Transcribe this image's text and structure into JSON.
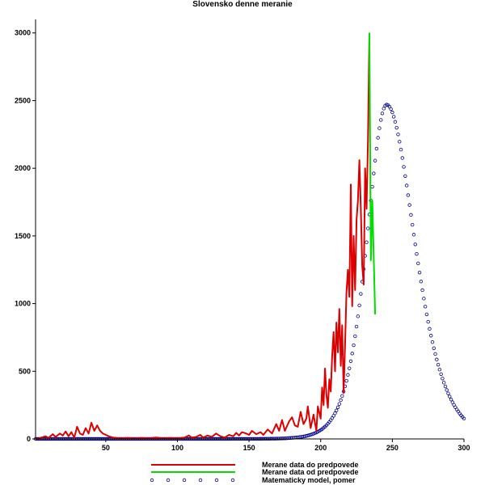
{
  "chart_data": {
    "type": "line",
    "title": "Slovensko denne meranie",
    "xlabel": "",
    "ylabel": "",
    "xlim": [
      1,
      300
    ],
    "ylim": [
      0,
      3100
    ],
    "x_ticks": [
      50,
      100,
      150,
      200,
      250,
      300
    ],
    "y_ticks": [
      0,
      500,
      1000,
      1500,
      2000,
      2500,
      3000
    ],
    "grid": false,
    "legend_position": "bottom-center",
    "series": [
      {
        "name": "Merane data do predpovede",
        "color": "#dd0000",
        "style": "line",
        "points": [
          [
            1,
            5
          ],
          [
            3,
            0
          ],
          [
            5,
            10
          ],
          [
            8,
            20
          ],
          [
            10,
            8
          ],
          [
            13,
            35
          ],
          [
            15,
            15
          ],
          [
            18,
            40
          ],
          [
            20,
            25
          ],
          [
            22,
            55
          ],
          [
            24,
            20
          ],
          [
            26,
            50
          ],
          [
            28,
            10
          ],
          [
            30,
            90
          ],
          [
            32,
            40
          ],
          [
            34,
            30
          ],
          [
            36,
            80
          ],
          [
            38,
            40
          ],
          [
            40,
            120
          ],
          [
            42,
            60
          ],
          [
            44,
            100
          ],
          [
            46,
            60
          ],
          [
            48,
            40
          ],
          [
            50,
            30
          ],
          [
            52,
            20
          ],
          [
            55,
            10
          ],
          [
            60,
            5
          ],
          [
            65,
            8
          ],
          [
            70,
            5
          ],
          [
            75,
            8
          ],
          [
            80,
            5
          ],
          [
            85,
            10
          ],
          [
            90,
            5
          ],
          [
            95,
            8
          ],
          [
            100,
            5
          ],
          [
            105,
            10
          ],
          [
            108,
            25
          ],
          [
            110,
            10
          ],
          [
            113,
            15
          ],
          [
            116,
            30
          ],
          [
            118,
            10
          ],
          [
            121,
            25
          ],
          [
            124,
            15
          ],
          [
            127,
            40
          ],
          [
            130,
            20
          ],
          [
            133,
            10
          ],
          [
            136,
            30
          ],
          [
            139,
            20
          ],
          [
            141,
            45
          ],
          [
            143,
            25
          ],
          [
            145,
            50
          ],
          [
            148,
            40
          ],
          [
            150,
            30
          ],
          [
            152,
            60
          ],
          [
            155,
            35
          ],
          [
            158,
            50
          ],
          [
            160,
            30
          ],
          [
            163,
            70
          ],
          [
            166,
            40
          ],
          [
            169,
            110
          ],
          [
            171,
            60
          ],
          [
            173,
            140
          ],
          [
            175,
            60
          ],
          [
            178,
            130
          ],
          [
            180,
            160
          ],
          [
            182,
            100
          ],
          [
            184,
            90
          ],
          [
            186,
            200
          ],
          [
            188,
            110
          ],
          [
            190,
            150
          ],
          [
            191,
            240
          ],
          [
            193,
            80
          ],
          [
            195,
            180
          ],
          [
            197,
            60
          ],
          [
            198,
            240
          ],
          [
            200,
            150
          ],
          [
            201,
            380
          ],
          [
            202,
            250
          ],
          [
            203,
            520
          ],
          [
            204,
            330
          ],
          [
            205,
            230
          ],
          [
            206,
            440
          ],
          [
            207,
            350
          ],
          [
            208,
            610
          ],
          [
            209,
            790
          ],
          [
            210,
            500
          ],
          [
            211,
            860
          ],
          [
            212,
            640
          ],
          [
            213,
            960
          ],
          [
            214,
            540
          ],
          [
            215,
            840
          ],
          [
            216,
            340
          ],
          [
            217,
            700
          ],
          [
            218,
            1080
          ],
          [
            219,
            1250
          ],
          [
            220,
            1050
          ],
          [
            221,
            1880
          ],
          [
            222,
            980
          ],
          [
            223,
            1500
          ],
          [
            224,
            1100
          ],
          [
            225,
            1620
          ],
          [
            226,
            1760
          ],
          [
            227,
            2060
          ],
          [
            228,
            1700
          ],
          [
            229,
            1280
          ],
          [
            230,
            1140
          ],
          [
            231,
            2000
          ],
          [
            232,
            1700
          ],
          [
            233,
            2200
          ],
          [
            234,
            3000
          ]
        ]
      },
      {
        "name": "Merane data od predpovede",
        "color": "#00dd00",
        "style": "line",
        "points": [
          [
            234,
            3000
          ],
          [
            235,
            1320
          ],
          [
            236,
            1760
          ],
          [
            237,
            1350
          ],
          [
            238,
            920
          ]
        ]
      },
      {
        "name": "Matematicky model, pomer",
        "color": "#00008b",
        "style": "markers",
        "model": "logistic_derivative",
        "peak_x": 246,
        "peak_y": 2470,
        "rise_scale": 9.2,
        "fall_scale": 13,
        "x_range": [
          1,
          300
        ]
      }
    ]
  }
}
